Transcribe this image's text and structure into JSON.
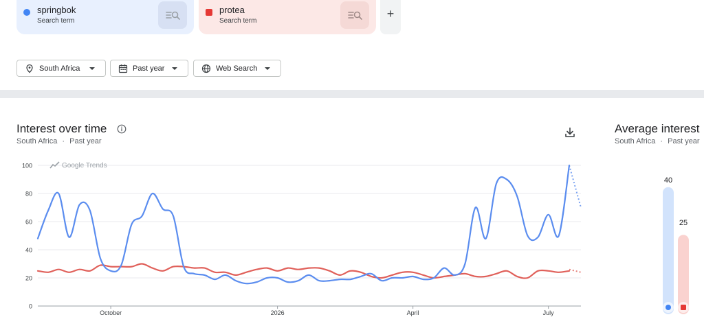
{
  "search_terms": [
    {
      "name": "springbok",
      "sub": "Search term",
      "color": "#4285f4"
    },
    {
      "name": "protea",
      "sub": "Search term",
      "color": "#e53935"
    }
  ],
  "add_button": "+",
  "filters": {
    "region": "South Africa",
    "time": "Past year",
    "property": "Web Search"
  },
  "interest": {
    "title": "Interest over time",
    "subtitle_region": "South Africa",
    "subtitle_sep": "·",
    "subtitle_time": "Past year",
    "watermark": "Google Trends"
  },
  "average": {
    "title": "Average interest",
    "subtitle_region": "South Africa",
    "subtitle_sep": "·",
    "subtitle_time": "Past year",
    "springbok_value": "40",
    "protea_value": "25"
  },
  "chart_data": {
    "type": "line",
    "ylim": [
      0,
      100
    ],
    "yticks": [
      "0",
      "20",
      "40",
      "60",
      "80",
      "100"
    ],
    "x_tick_labels": [
      {
        "label": "October",
        "week": 7
      },
      {
        "label": "2026",
        "week": 23
      },
      {
        "label": "April",
        "week": 36
      },
      {
        "label": "July",
        "week": 49
      }
    ],
    "series": [
      {
        "name": "springbok",
        "color": "#5b8def",
        "values": [
          48,
          68,
          80,
          49,
          72,
          68,
          34,
          25,
          29,
          58,
          64,
          80,
          69,
          64,
          28,
          23,
          22,
          19,
          22,
          18,
          16,
          17,
          20,
          20,
          17,
          18,
          22,
          18,
          18,
          19,
          19,
          21,
          23,
          18,
          20,
          20,
          21,
          19,
          20,
          27,
          22,
          30,
          70,
          48,
          87,
          90,
          78,
          50,
          49,
          65,
          50,
          100
        ],
        "partial_values": [
          100,
          70
        ]
      },
      {
        "name": "protea",
        "color": "#e0605a",
        "values": [
          25,
          24,
          26,
          24,
          26,
          25,
          29,
          28,
          28,
          28,
          30,
          27,
          25,
          28,
          28,
          27,
          27,
          24,
          24,
          22,
          24,
          26,
          27,
          25,
          27,
          26,
          27,
          27,
          25,
          22,
          25,
          24,
          21,
          20,
          22,
          24,
          24,
          22,
          20,
          21,
          22,
          23,
          21,
          21,
          23,
          25,
          21,
          20,
          25,
          25,
          24,
          25
        ],
        "partial_values": [
          26,
          24
        ]
      }
    ]
  },
  "average_chart": {
    "type": "bar",
    "categories": [
      "springbok",
      "protea"
    ],
    "values": [
      40,
      25
    ]
  }
}
